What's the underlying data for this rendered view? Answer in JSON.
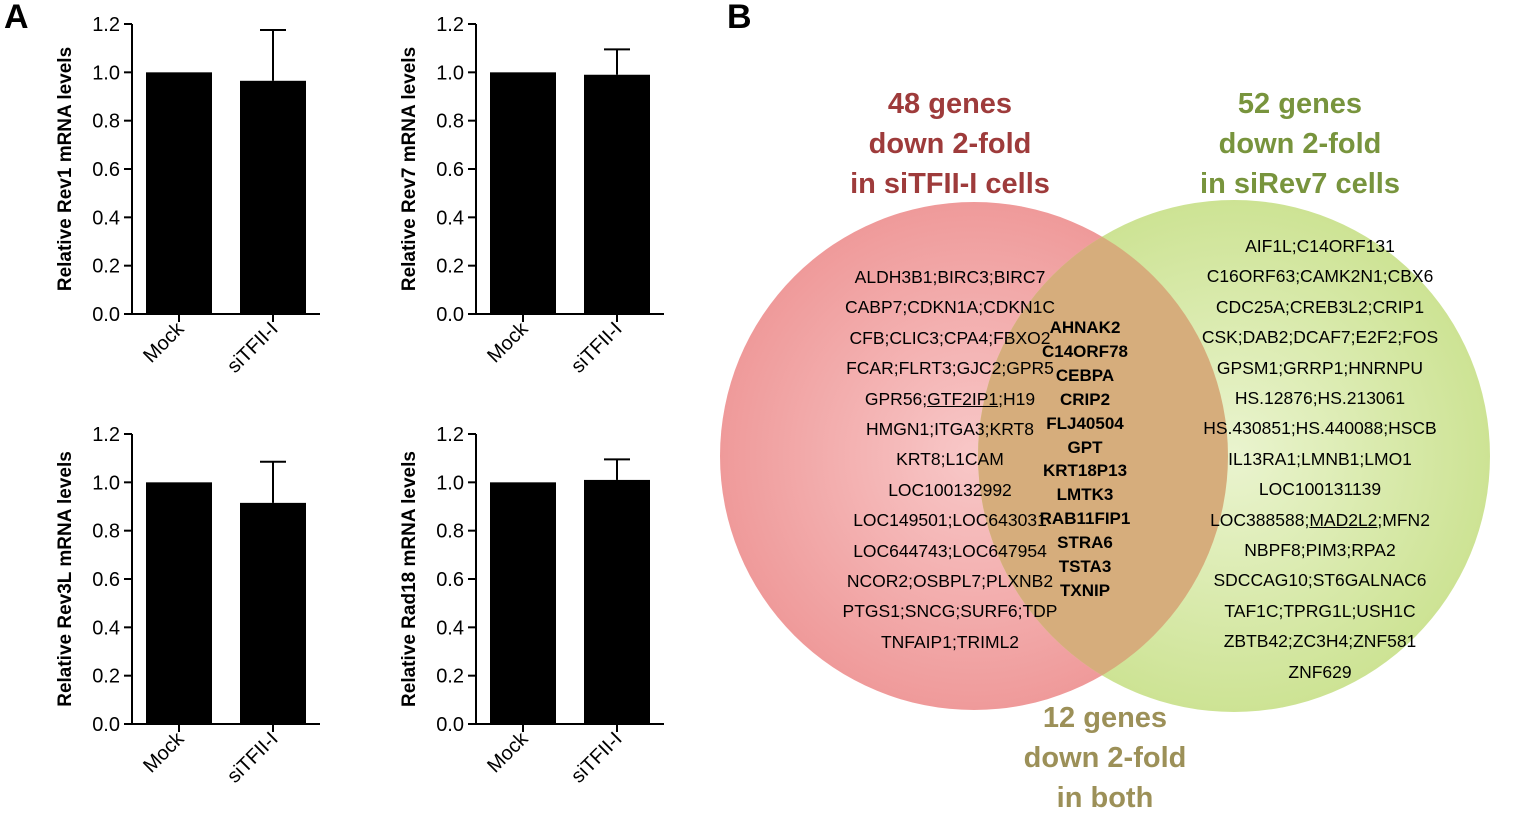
{
  "panels": {
    "a": "A",
    "b": "B"
  },
  "chart_data": [
    {
      "type": "bar",
      "categories": [
        "Mock",
        "siTFII-I"
      ],
      "values": [
        1.0,
        0.965
      ],
      "errors": [
        0,
        0.21
      ],
      "ylabel": "Relative Rev1 mRNA levels",
      "ylim": [
        0,
        1.2
      ],
      "yticks": [
        "0.0",
        "0.2",
        "0.4",
        "0.6",
        "0.8",
        "1.0",
        "1.2"
      ],
      "grid": false,
      "color": "#000000"
    },
    {
      "type": "bar",
      "categories": [
        "Mock",
        "siTFII-I"
      ],
      "values": [
        1.0,
        0.99
      ],
      "errors": [
        0,
        0.105
      ],
      "ylabel": "Relative Rev7 mRNA levels",
      "ylim": [
        0,
        1.2
      ],
      "yticks": [
        "0.0",
        "0.2",
        "0.4",
        "0.6",
        "0.8",
        "1.0",
        "1.2"
      ],
      "grid": false,
      "color": "#000000"
    },
    {
      "type": "bar",
      "categories": [
        "Mock",
        "siTFII-I"
      ],
      "values": [
        1.0,
        0.915
      ],
      "errors": [
        0,
        0.17
      ],
      "ylabel": "Relative Rev3L mRNA levels",
      "ylim": [
        0,
        1.2
      ],
      "yticks": [
        "0.0",
        "0.2",
        "0.4",
        "0.6",
        "0.8",
        "1.0",
        "1.2"
      ],
      "grid": false,
      "color": "#000000"
    },
    {
      "type": "bar",
      "categories": [
        "Mock",
        "siTFII-I"
      ],
      "values": [
        1.0,
        1.01
      ],
      "errors": [
        0,
        0.085
      ],
      "ylabel": "Relative Rad18 mRNA levels",
      "ylim": [
        0,
        1.2
      ],
      "yticks": [
        "0.0",
        "0.2",
        "0.4",
        "0.6",
        "0.8",
        "1.0",
        "1.2"
      ],
      "grid": false,
      "color": "#000000"
    }
  ],
  "venn": {
    "left_title": [
      "48 genes",
      "down 2-fold",
      "in siTFII-I cells"
    ],
    "right_title": [
      "52 genes",
      "down 2-fold",
      "in siRev7 cells"
    ],
    "both_title": [
      "12 genes",
      "down 2-fold",
      "in both"
    ],
    "colors": {
      "left_fill": "#f2a5a5",
      "right_fill": "#d6e8a2",
      "overlap_fill": "#d9b380",
      "left_title": "#9e3b3b",
      "right_title": "#78943d",
      "both_title": "#9c9058"
    },
    "left_genes": [
      {
        "text": "ALDH3B1;BIRC3;BIRC7"
      },
      {
        "text": "CABP7;CDKN1A;CDKN1C"
      },
      {
        "text": "CFB;CLIC3;CPA4;FBXO2"
      },
      {
        "text": "FCAR;FLRT3;GJC2;GPR5"
      },
      {
        "pre": "GPR56;",
        "underlined": "GTF2IP1",
        "post": ";H19"
      },
      {
        "text": "HMGN1;ITGA3;KRT8"
      },
      {
        "text": "KRT8;L1CAM"
      },
      {
        "text": "LOC100132992"
      },
      {
        "text": "LOC149501;LOC643031"
      },
      {
        "text": "LOC644743;LOC647954"
      },
      {
        "text": "NCOR2;OSBPL7;PLXNB2"
      },
      {
        "text": "PTGS1;SNCG;SURF6;TDP"
      },
      {
        "text": "TNFAIP1;TRIML2"
      }
    ],
    "right_genes": [
      {
        "text": "AIF1L;C14ORF131"
      },
      {
        "text": "C16ORF63;CAMK2N1;CBX6"
      },
      {
        "text": "CDC25A;CREB3L2;CRIP1"
      },
      {
        "text": "CSK;DAB2;DCAF7;E2F2;FOS"
      },
      {
        "text": "GPSM1;GRRP1;HNRNPU"
      },
      {
        "text": "HS.12876;HS.213061"
      },
      {
        "text": "HS.430851;HS.440088;HSCB"
      },
      {
        "text": "IL13RA1;LMNB1;LMO1"
      },
      {
        "text": "LOC100131139"
      },
      {
        "pre": "LOC388588;",
        "underlined": "MAD2L2",
        "post": ";MFN2"
      },
      {
        "text": "NBPF8;PIM3;RPA2"
      },
      {
        "text": "SDCCAG10;ST6GALNAC6"
      },
      {
        "text": "TAF1C;TPRG1L;USH1C"
      },
      {
        "text": "ZBTB42;ZC3H4;ZNF581"
      },
      {
        "text": "ZNF629"
      }
    ],
    "both_genes": [
      "AHNAK2",
      "C14ORF78",
      "CEBPA",
      "CRIP2",
      "FLJ40504",
      "GPT",
      "KRT18P13",
      "LMTK3",
      "RAB11FIP1",
      "STRA6",
      "TSTA3",
      "TXNIP"
    ]
  }
}
